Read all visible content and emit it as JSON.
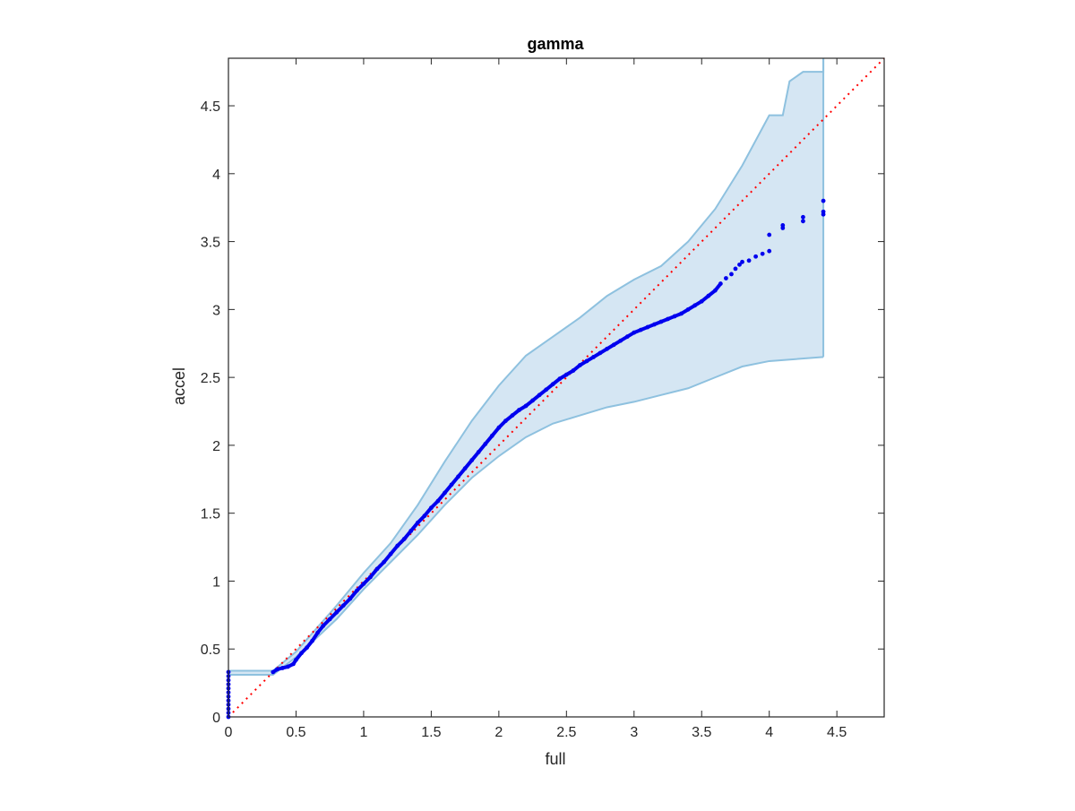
{
  "chart_data": {
    "type": "scatter",
    "title": "gamma",
    "xlabel": "full",
    "ylabel": "accel",
    "xlim": [
      0,
      4.85
    ],
    "ylim": [
      0,
      4.85
    ],
    "xticks": [
      0,
      0.5,
      1,
      1.5,
      2,
      2.5,
      3,
      3.5,
      4,
      4.5
    ],
    "yticks": [
      0,
      0.5,
      1,
      1.5,
      2,
      2.5,
      3,
      3.5,
      4,
      4.5
    ],
    "xtick_labels": [
      "0",
      "0.5",
      "1",
      "1.5",
      "2",
      "2.5",
      "3",
      "3.5",
      "4",
      "4.5"
    ],
    "ytick_labels": [
      "0",
      "0.5",
      "1",
      "1.5",
      "2",
      "2.5",
      "3",
      "3.5",
      "4",
      "4.5"
    ],
    "grid": false,
    "reference_line": {
      "from": [
        0,
        0
      ],
      "to": [
        4.85,
        4.85
      ],
      "style": "dotted",
      "color": "#ff0000"
    },
    "band": {
      "color": "#d5e6f3",
      "edge_color": "#8ec1df",
      "upper": [
        [
          0,
          0.34
        ],
        [
          0.33,
          0.34
        ],
        [
          0.5,
          0.48
        ],
        [
          0.8,
          0.82
        ],
        [
          1.0,
          1.06
        ],
        [
          1.2,
          1.28
        ],
        [
          1.4,
          1.56
        ],
        [
          1.6,
          1.88
        ],
        [
          1.8,
          2.18
        ],
        [
          2.0,
          2.44
        ],
        [
          2.2,
          2.66
        ],
        [
          2.4,
          2.8
        ],
        [
          2.6,
          2.94
        ],
        [
          2.8,
          3.1
        ],
        [
          3.0,
          3.22
        ],
        [
          3.2,
          3.32
        ],
        [
          3.4,
          3.5
        ],
        [
          3.6,
          3.74
        ],
        [
          3.8,
          4.06
        ],
        [
          4.0,
          4.43
        ],
        [
          4.1,
          4.43
        ],
        [
          4.15,
          4.68
        ],
        [
          4.25,
          4.75
        ],
        [
          4.4,
          4.75
        ],
        [
          4.4,
          4.85
        ]
      ],
      "lower": [
        [
          0,
          0.31
        ],
        [
          0.33,
          0.31
        ],
        [
          0.5,
          0.44
        ],
        [
          0.8,
          0.72
        ],
        [
          1.0,
          0.94
        ],
        [
          1.2,
          1.14
        ],
        [
          1.4,
          1.34
        ],
        [
          1.6,
          1.56
        ],
        [
          1.8,
          1.76
        ],
        [
          2.0,
          1.92
        ],
        [
          2.2,
          2.06
        ],
        [
          2.4,
          2.16
        ],
        [
          2.6,
          2.22
        ],
        [
          2.8,
          2.28
        ],
        [
          3.0,
          2.32
        ],
        [
          3.2,
          2.37
        ],
        [
          3.4,
          2.42
        ],
        [
          3.6,
          2.5
        ],
        [
          3.8,
          2.58
        ],
        [
          4.0,
          2.62
        ],
        [
          4.4,
          2.65
        ]
      ]
    },
    "points": [
      [
        0,
        0.0
      ],
      [
        0,
        0.03
      ],
      [
        0,
        0.06
      ],
      [
        0,
        0.09
      ],
      [
        0,
        0.12
      ],
      [
        0,
        0.15
      ],
      [
        0,
        0.18
      ],
      [
        0,
        0.21
      ],
      [
        0,
        0.24
      ],
      [
        0,
        0.27
      ],
      [
        0,
        0.3
      ],
      [
        0,
        0.33
      ],
      [
        0.33,
        0.33
      ],
      [
        0.36,
        0.35
      ],
      [
        0.4,
        0.36
      ],
      [
        0.44,
        0.37
      ],
      [
        0.48,
        0.39
      ],
      [
        0.5,
        0.42
      ],
      [
        0.54,
        0.47
      ],
      [
        0.58,
        0.51
      ],
      [
        0.62,
        0.56
      ],
      [
        0.66,
        0.62
      ],
      [
        0.7,
        0.67
      ],
      [
        0.75,
        0.72
      ],
      [
        0.8,
        0.77
      ],
      [
        0.85,
        0.82
      ],
      [
        0.9,
        0.87
      ],
      [
        0.95,
        0.93
      ],
      [
        1.0,
        0.98
      ],
      [
        1.05,
        1.03
      ],
      [
        1.1,
        1.09
      ],
      [
        1.15,
        1.14
      ],
      [
        1.2,
        1.2
      ],
      [
        1.25,
        1.26
      ],
      [
        1.3,
        1.31
      ],
      [
        1.35,
        1.37
      ],
      [
        1.4,
        1.43
      ],
      [
        1.45,
        1.48
      ],
      [
        1.5,
        1.54
      ],
      [
        1.55,
        1.59
      ],
      [
        1.6,
        1.65
      ],
      [
        1.65,
        1.71
      ],
      [
        1.7,
        1.77
      ],
      [
        1.75,
        1.83
      ],
      [
        1.8,
        1.89
      ],
      [
        1.85,
        1.95
      ],
      [
        1.9,
        2.01
      ],
      [
        1.95,
        2.07
      ],
      [
        2.0,
        2.13
      ],
      [
        2.05,
        2.18
      ],
      [
        2.1,
        2.22
      ],
      [
        2.15,
        2.26
      ],
      [
        2.2,
        2.29
      ],
      [
        2.25,
        2.33
      ],
      [
        2.3,
        2.37
      ],
      [
        2.35,
        2.41
      ],
      [
        2.4,
        2.45
      ],
      [
        2.45,
        2.49
      ],
      [
        2.5,
        2.52
      ],
      [
        2.55,
        2.55
      ],
      [
        2.6,
        2.59
      ],
      [
        2.65,
        2.62
      ],
      [
        2.7,
        2.65
      ],
      [
        2.75,
        2.68
      ],
      [
        2.8,
        2.71
      ],
      [
        2.85,
        2.74
      ],
      [
        2.9,
        2.77
      ],
      [
        2.95,
        2.8
      ],
      [
        3.0,
        2.83
      ],
      [
        3.05,
        2.85
      ],
      [
        3.1,
        2.87
      ],
      [
        3.15,
        2.89
      ],
      [
        3.2,
        2.91
      ],
      [
        3.25,
        2.93
      ],
      [
        3.3,
        2.95
      ],
      [
        3.35,
        2.97
      ],
      [
        3.4,
        3.0
      ],
      [
        3.45,
        3.03
      ],
      [
        3.5,
        3.06
      ],
      [
        3.55,
        3.1
      ],
      [
        3.6,
        3.14
      ],
      [
        3.64,
        3.19
      ],
      [
        3.68,
        3.23
      ],
      [
        3.72,
        3.26
      ],
      [
        3.75,
        3.3
      ],
      [
        3.78,
        3.33
      ],
      [
        3.8,
        3.35
      ],
      [
        3.85,
        3.36
      ],
      [
        3.9,
        3.39
      ],
      [
        3.95,
        3.41
      ],
      [
        4.0,
        3.43
      ],
      [
        4.0,
        3.55
      ],
      [
        4.1,
        3.6
      ],
      [
        4.1,
        3.62
      ],
      [
        4.25,
        3.65
      ],
      [
        4.25,
        3.68
      ],
      [
        4.4,
        3.7
      ],
      [
        4.4,
        3.72
      ],
      [
        4.4,
        3.8
      ]
    ],
    "point_color": "#0000ee"
  }
}
